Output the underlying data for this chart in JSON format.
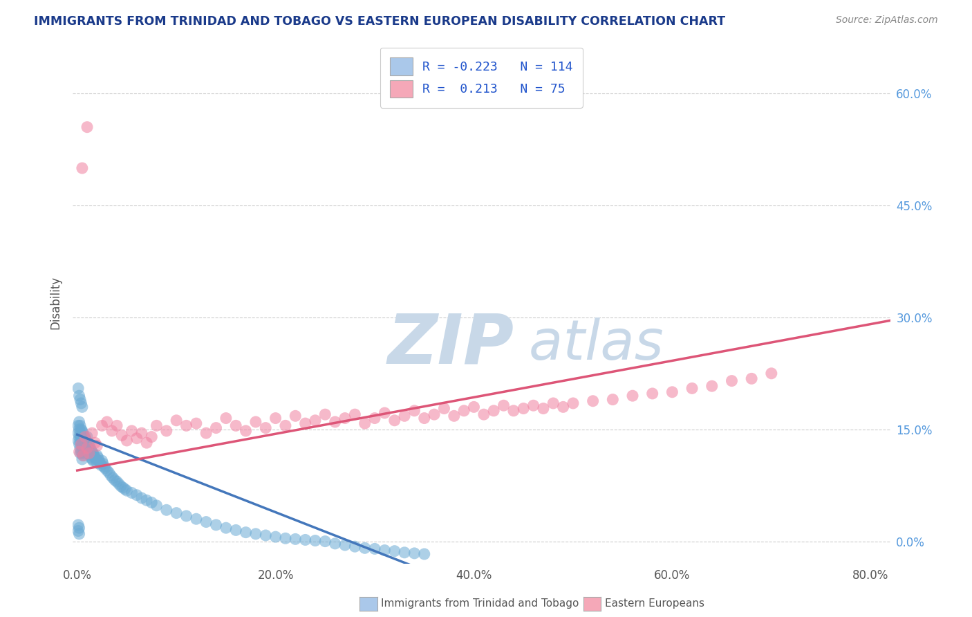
{
  "title": "IMMIGRANTS FROM TRINIDAD AND TOBAGO VS EASTERN EUROPEAN DISABILITY CORRELATION CHART",
  "source": "Source: ZipAtlas.com",
  "ylabel": "Disability",
  "ytick_values": [
    0.0,
    0.15,
    0.3,
    0.45,
    0.6
  ],
  "xtick_values": [
    0.0,
    0.2,
    0.4,
    0.6,
    0.8
  ],
  "xlim": [
    -0.005,
    0.82
  ],
  "ylim": [
    -0.03,
    0.67
  ],
  "legend1_label_r": "R = -0.223",
  "legend1_label_n": "N = 114",
  "legend2_label_r": "R =  0.213",
  "legend2_label_n": "N = 75",
  "legend1_color": "#aac8ea",
  "legend2_color": "#f5a8b8",
  "series1_color": "#6baad4",
  "series2_color": "#f080a0",
  "trendline1_color": "#4477bb",
  "trendline2_color": "#dd5577",
  "watermark_zip_color": "#c8d8e8",
  "watermark_atlas_color": "#c8d8e8",
  "background_color": "#ffffff",
  "gridline_color": "#cccccc",
  "title_color": "#1a3a8a",
  "source_color": "#888888",
  "axis_label_color": "#555555",
  "right_tick_color": "#5599dd",
  "series1_x": [
    0.001,
    0.001,
    0.001,
    0.002,
    0.002,
    0.002,
    0.002,
    0.003,
    0.003,
    0.003,
    0.003,
    0.003,
    0.004,
    0.004,
    0.004,
    0.004,
    0.005,
    0.005,
    0.005,
    0.005,
    0.005,
    0.006,
    0.006,
    0.006,
    0.006,
    0.007,
    0.007,
    0.007,
    0.008,
    0.008,
    0.008,
    0.009,
    0.009,
    0.01,
    0.01,
    0.01,
    0.011,
    0.011,
    0.012,
    0.012,
    0.013,
    0.013,
    0.014,
    0.014,
    0.015,
    0.015,
    0.016,
    0.016,
    0.017,
    0.018,
    0.019,
    0.02,
    0.02,
    0.021,
    0.022,
    0.023,
    0.024,
    0.025,
    0.026,
    0.027,
    0.028,
    0.03,
    0.032,
    0.034,
    0.036,
    0.038,
    0.04,
    0.042,
    0.044,
    0.046,
    0.048,
    0.05,
    0.055,
    0.06,
    0.065,
    0.07,
    0.075,
    0.08,
    0.09,
    0.1,
    0.11,
    0.12,
    0.13,
    0.14,
    0.15,
    0.16,
    0.17,
    0.18,
    0.19,
    0.2,
    0.21,
    0.22,
    0.23,
    0.24,
    0.25,
    0.26,
    0.27,
    0.28,
    0.29,
    0.3,
    0.31,
    0.32,
    0.33,
    0.34,
    0.35,
    0.001,
    0.002,
    0.003,
    0.004,
    0.005,
    0.001,
    0.002,
    0.001,
    0.002
  ],
  "series1_y": [
    0.155,
    0.145,
    0.135,
    0.16,
    0.15,
    0.14,
    0.13,
    0.155,
    0.145,
    0.135,
    0.125,
    0.118,
    0.15,
    0.14,
    0.13,
    0.12,
    0.148,
    0.138,
    0.128,
    0.118,
    0.11,
    0.145,
    0.135,
    0.125,
    0.115,
    0.14,
    0.13,
    0.12,
    0.138,
    0.128,
    0.118,
    0.135,
    0.125,
    0.14,
    0.13,
    0.12,
    0.132,
    0.122,
    0.128,
    0.118,
    0.126,
    0.116,
    0.122,
    0.112,
    0.12,
    0.11,
    0.118,
    0.108,
    0.115,
    0.112,
    0.11,
    0.115,
    0.105,
    0.112,
    0.108,
    0.105,
    0.102,
    0.108,
    0.104,
    0.1,
    0.098,
    0.095,
    0.092,
    0.088,
    0.085,
    0.082,
    0.08,
    0.077,
    0.074,
    0.072,
    0.07,
    0.068,
    0.065,
    0.062,
    0.058,
    0.055,
    0.052,
    0.048,
    0.042,
    0.038,
    0.034,
    0.03,
    0.026,
    0.022,
    0.018,
    0.015,
    0.012,
    0.01,
    0.008,
    0.006,
    0.004,
    0.003,
    0.002,
    0.001,
    0.0,
    -0.003,
    -0.005,
    -0.007,
    -0.009,
    -0.01,
    -0.012,
    -0.013,
    -0.015,
    -0.016,
    -0.017,
    0.205,
    0.195,
    0.19,
    0.185,
    0.18,
    0.022,
    0.018,
    0.014,
    0.01
  ],
  "series2_x": [
    0.002,
    0.004,
    0.006,
    0.008,
    0.01,
    0.012,
    0.015,
    0.018,
    0.02,
    0.025,
    0.03,
    0.035,
    0.04,
    0.045,
    0.05,
    0.055,
    0.06,
    0.065,
    0.07,
    0.075,
    0.08,
    0.09,
    0.1,
    0.11,
    0.12,
    0.13,
    0.14,
    0.15,
    0.16,
    0.17,
    0.18,
    0.19,
    0.2,
    0.21,
    0.22,
    0.23,
    0.24,
    0.25,
    0.26,
    0.27,
    0.28,
    0.29,
    0.3,
    0.31,
    0.32,
    0.33,
    0.34,
    0.35,
    0.36,
    0.37,
    0.38,
    0.39,
    0.4,
    0.41,
    0.42,
    0.43,
    0.44,
    0.45,
    0.46,
    0.47,
    0.48,
    0.49,
    0.5,
    0.52,
    0.54,
    0.56,
    0.58,
    0.6,
    0.62,
    0.64,
    0.66,
    0.68,
    0.7,
    0.005,
    0.01
  ],
  "series2_y": [
    0.12,
    0.13,
    0.115,
    0.14,
    0.125,
    0.118,
    0.145,
    0.132,
    0.128,
    0.155,
    0.16,
    0.148,
    0.155,
    0.142,
    0.135,
    0.148,
    0.138,
    0.145,
    0.132,
    0.14,
    0.155,
    0.148,
    0.162,
    0.155,
    0.158,
    0.145,
    0.152,
    0.165,
    0.155,
    0.148,
    0.16,
    0.152,
    0.165,
    0.155,
    0.168,
    0.158,
    0.162,
    0.17,
    0.16,
    0.165,
    0.17,
    0.158,
    0.165,
    0.172,
    0.162,
    0.168,
    0.175,
    0.165,
    0.17,
    0.178,
    0.168,
    0.175,
    0.18,
    0.17,
    0.175,
    0.182,
    0.175,
    0.178,
    0.182,
    0.178,
    0.185,
    0.18,
    0.185,
    0.188,
    0.19,
    0.195,
    0.198,
    0.2,
    0.205,
    0.208,
    0.215,
    0.218,
    0.225,
    0.5,
    0.555
  ],
  "trendline1_solid_end": 0.35,
  "trendline1_y_at_0": 0.143,
  "trendline1_slope": -0.52,
  "trendline2_y_at_0": 0.095,
  "trendline2_slope": 0.245,
  "bottom_legend1": "Immigrants from Trinidad and Tobago",
  "bottom_legend2": "Eastern Europeans"
}
